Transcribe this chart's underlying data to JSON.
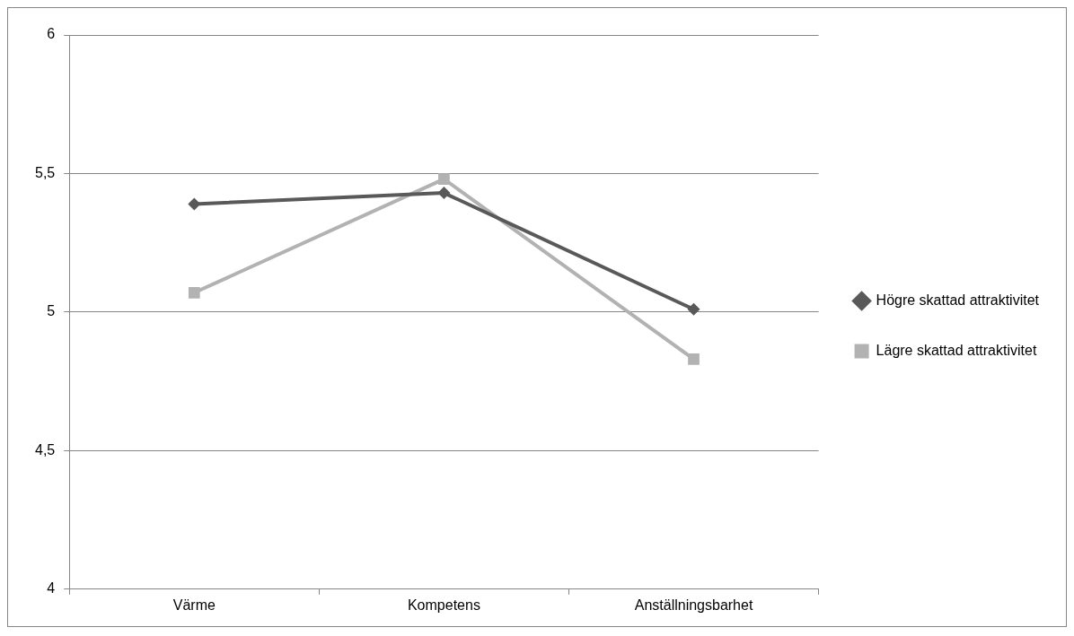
{
  "chart_data": {
    "type": "line",
    "categories": [
      "Värme",
      "Kompetens",
      "Anställningsbarhet"
    ],
    "series": [
      {
        "name": "Högre skattad attraktivitet",
        "color": "#595959",
        "marker": "diamond",
        "values": [
          5.39,
          5.43,
          5.01
        ]
      },
      {
        "name": "Lägre skattad attraktivitet",
        "color": "#b2b2b2",
        "marker": "square",
        "values": [
          5.07,
          5.48,
          4.83
        ]
      }
    ],
    "ylim": [
      4,
      6
    ],
    "yticks": [
      {
        "value": 4,
        "label": "4"
      },
      {
        "value": 4.5,
        "label": "4,5"
      },
      {
        "value": 5,
        "label": "5"
      },
      {
        "value": 5.5,
        "label": "5,5"
      },
      {
        "value": 6,
        "label": "6"
      }
    ],
    "grid": "y",
    "legend": "right"
  }
}
